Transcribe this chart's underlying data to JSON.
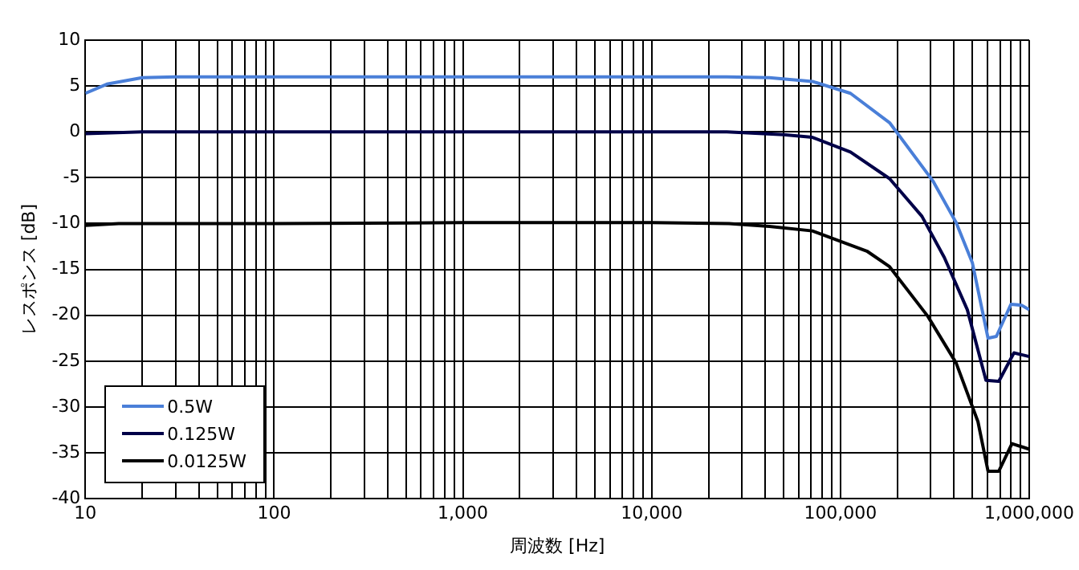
{
  "chart_data": {
    "type": "line",
    "xlabel": "周波数 [Hz]",
    "ylabel": "レスポンス [dB]",
    "log": "x",
    "grid": true,
    "legend": "bottom left",
    "marker": "none",
    "line_style": "solid",
    "xlim": [
      10,
      1000000
    ],
    "ylim": [
      -40,
      10
    ],
    "xticks": [
      10,
      {
        "value": 20,
        "label": null
      },
      {
        "value": 30,
        "label": null
      },
      {
        "value": 40,
        "label": null
      },
      {
        "value": 50,
        "label": null
      },
      {
        "value": 60,
        "label": null
      },
      {
        "value": 70,
        "label": null
      },
      {
        "value": 80,
        "label": null
      },
      {
        "value": 90,
        "label": null
      },
      100,
      {
        "value": 200,
        "label": null
      },
      {
        "value": 300,
        "label": null
      },
      {
        "value": 400,
        "label": null
      },
      {
        "value": 500,
        "label": null
      },
      {
        "value": 600,
        "label": null
      },
      {
        "value": 700,
        "label": null
      },
      {
        "value": 800,
        "label": null
      },
      {
        "value": 900,
        "label": null
      },
      {
        "value": 1000,
        "label": "1,000"
      },
      {
        "value": 2000,
        "label": null
      },
      {
        "value": 3000,
        "label": null
      },
      {
        "value": 4000,
        "label": null
      },
      {
        "value": 5000,
        "label": null
      },
      {
        "value": 6000,
        "label": null
      },
      {
        "value": 7000,
        "label": null
      },
      {
        "value": 8000,
        "label": null
      },
      {
        "value": 9000,
        "label": null
      },
      {
        "value": 10000,
        "label": "10,000"
      },
      {
        "value": 20000,
        "label": null
      },
      {
        "value": 30000,
        "label": null
      },
      {
        "value": 40000,
        "label": null
      },
      {
        "value": 50000,
        "label": null
      },
      {
        "value": 60000,
        "label": null
      },
      {
        "value": 70000,
        "label": null
      },
      {
        "value": 80000,
        "label": null
      },
      {
        "value": 90000,
        "label": null
      },
      {
        "value": 100000,
        "label": "100,000"
      },
      {
        "value": 200000,
        "label": null
      },
      {
        "value": 300000,
        "label": null
      },
      {
        "value": 400000,
        "label": null
      },
      {
        "value": 500000,
        "label": null
      },
      {
        "value": 600000,
        "label": null
      },
      {
        "value": 700000,
        "label": null
      },
      {
        "value": 800000,
        "label": null
      },
      {
        "value": 900000,
        "label": null
      },
      {
        "value": 1000000,
        "label": "1,000,000"
      }
    ],
    "yticks": [
      -40,
      -35,
      -30,
      -25,
      -20,
      -15,
      -10,
      -5,
      0,
      5,
      10
    ],
    "series": [
      {
        "name": "0.5W",
        "color": "#4a7fd8",
        "x": [
          10,
          13,
          20,
          30,
          100,
          1000,
          10000,
          25000,
          42000,
          71000,
          113000,
          182000,
          310000,
          410000,
          500000,
          605000,
          670000,
          800000,
          910000,
          1000000
        ],
        "values": [
          4.2,
          5.2,
          5.9,
          6,
          6,
          6,
          6,
          6,
          5.9,
          5.5,
          4.2,
          1,
          -5.4,
          -9.9,
          -14.3,
          -22.5,
          -22.3,
          -18.8,
          -18.9,
          -19.4
        ]
      },
      {
        "name": "0.125W",
        "color": "#000048",
        "x": [
          10,
          20,
          100,
          1000,
          10000,
          25000,
          50000,
          71000,
          113000,
          182000,
          270000,
          355000,
          470000,
          590000,
          690000,
          830000,
          1000000
        ],
        "values": [
          -0.2,
          0,
          0,
          0,
          0,
          0,
          -0.3,
          -0.6,
          -2.2,
          -5.1,
          -9.2,
          -13.7,
          -19.4,
          -27.1,
          -27.2,
          -24.1,
          -24.5
        ]
      },
      {
        "name": "0.0125W",
        "color": "#000000",
        "x": [
          10,
          15,
          100,
          1000,
          10000,
          25700,
          42000,
          71000,
          138000,
          182000,
          290000,
          410000,
          535000,
          605000,
          690000,
          810000,
          1000000
        ],
        "values": [
          -10.2,
          -10,
          -10,
          -9.9,
          -9.9,
          -10,
          -10.3,
          -10.8,
          -13,
          -14.7,
          -20.1,
          -25.2,
          -31.6,
          -37,
          -37,
          -34,
          -34.6
        ]
      }
    ]
  }
}
